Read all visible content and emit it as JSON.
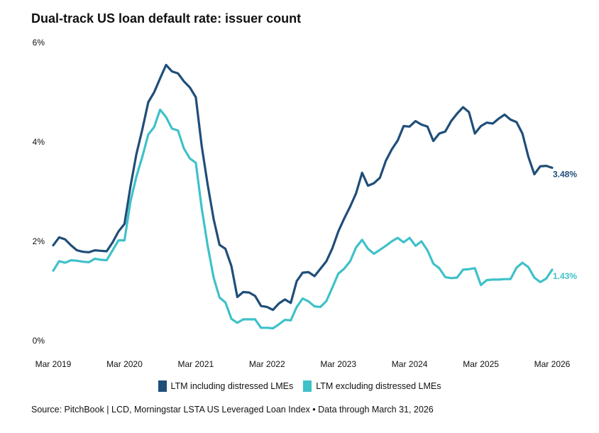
{
  "chart_data": {
    "type": "line",
    "title": "Dual-track US loan default rate: issuer count",
    "xlabel": "",
    "ylabel": "",
    "ylim": [
      0,
      6
    ],
    "y_ticks": [
      "0%",
      "2%",
      "4%",
      "6%"
    ],
    "y_tick_values": [
      0,
      2,
      4,
      6
    ],
    "x_range": [
      2019.167,
      2026.167
    ],
    "x_tick_labels": [
      "Mar 2019",
      "Mar 2020",
      "Mar 2021",
      "Mar 2022",
      "Mar 2023",
      "Mar 2024",
      "Mar 2025",
      "Mar 2026"
    ],
    "x_tick_values": [
      2019.167,
      2020.167,
      2021.167,
      2022.167,
      2023.167,
      2024.167,
      2025.167,
      2026.167
    ],
    "colors": {
      "including": "#1f4e79",
      "excluding": "#3fc1c9"
    },
    "series": [
      {
        "name": "LTM including distressed LMEs",
        "key": "including",
        "end_label": "3.48%",
        "x": [
          2019.167,
          2019.25,
          2019.333,
          2019.417,
          2019.5,
          2019.583,
          2019.667,
          2019.75,
          2019.833,
          2019.917,
          2020.0,
          2020.083,
          2020.167,
          2020.25,
          2020.333,
          2020.417,
          2020.5,
          2020.583,
          2020.667,
          2020.75,
          2020.833,
          2020.917,
          2021.0,
          2021.083,
          2021.167,
          2021.25,
          2021.333,
          2021.417,
          2021.5,
          2021.583,
          2021.667,
          2021.75,
          2021.833,
          2021.917,
          2022.0,
          2022.083,
          2022.167,
          2022.25,
          2022.333,
          2022.417,
          2022.5,
          2022.583,
          2022.667,
          2022.75,
          2022.833,
          2022.917,
          2023.0,
          2023.083,
          2023.167,
          2023.25,
          2023.333,
          2023.417,
          2023.5,
          2023.583,
          2023.667,
          2023.75,
          2023.833,
          2023.917,
          2024.0,
          2024.083,
          2024.167,
          2024.25,
          2024.333,
          2024.417,
          2024.5,
          2024.583,
          2024.667,
          2024.75,
          2024.833,
          2024.917,
          2025.0,
          2025.083,
          2025.167,
          2025.25,
          2025.333,
          2025.417,
          2025.5,
          2025.583,
          2025.667,
          2025.75,
          2025.833,
          2025.917,
          2026.0,
          2026.083,
          2026.167
        ],
        "values": [
          1.92,
          2.08,
          2.04,
          1.92,
          1.82,
          1.79,
          1.78,
          1.82,
          1.81,
          1.8,
          1.98,
          2.2,
          2.35,
          3.1,
          3.75,
          4.25,
          4.8,
          5.0,
          5.28,
          5.55,
          5.42,
          5.38,
          5.22,
          5.1,
          4.9,
          3.92,
          3.15,
          2.45,
          1.93,
          1.85,
          1.5,
          0.88,
          0.98,
          0.97,
          0.9,
          0.7,
          0.68,
          0.62,
          0.75,
          0.83,
          0.76,
          1.2,
          1.37,
          1.38,
          1.3,
          1.45,
          1.6,
          1.86,
          2.2,
          2.46,
          2.7,
          2.97,
          3.38,
          3.12,
          3.17,
          3.28,
          3.62,
          3.85,
          4.03,
          4.32,
          4.31,
          4.42,
          4.35,
          4.31,
          4.02,
          4.17,
          4.21,
          4.42,
          4.57,
          4.7,
          4.6,
          4.17,
          4.32,
          4.39,
          4.37,
          4.47,
          4.55,
          4.45,
          4.4,
          4.17,
          3.7,
          3.35,
          3.51,
          3.52,
          3.48
        ]
      },
      {
        "name": "LTM excluding distressed LMEs",
        "key": "excluding",
        "end_label": "1.43%",
        "x": [
          2019.167,
          2019.25,
          2019.333,
          2019.417,
          2019.5,
          2019.583,
          2019.667,
          2019.75,
          2019.833,
          2019.917,
          2020.0,
          2020.083,
          2020.167,
          2020.25,
          2020.333,
          2020.417,
          2020.5,
          2020.583,
          2020.667,
          2020.75,
          2020.833,
          2020.917,
          2021.0,
          2021.083,
          2021.167,
          2021.25,
          2021.333,
          2021.417,
          2021.5,
          2021.583,
          2021.667,
          2021.75,
          2021.833,
          2021.917,
          2022.0,
          2022.083,
          2022.167,
          2022.25,
          2022.333,
          2022.417,
          2022.5,
          2022.583,
          2022.667,
          2022.75,
          2022.833,
          2022.917,
          2023.0,
          2023.083,
          2023.167,
          2023.25,
          2023.333,
          2023.417,
          2023.5,
          2023.583,
          2023.667,
          2023.75,
          2023.833,
          2023.917,
          2024.0,
          2024.083,
          2024.167,
          2024.25,
          2024.333,
          2024.417,
          2024.5,
          2024.583,
          2024.667,
          2024.75,
          2024.833,
          2024.917,
          2025.0,
          2025.083,
          2025.167,
          2025.25,
          2025.333,
          2025.417,
          2025.5,
          2025.583,
          2025.667,
          2025.75,
          2025.833,
          2025.917,
          2026.0,
          2026.083,
          2026.167
        ],
        "values": [
          1.41,
          1.6,
          1.57,
          1.62,
          1.61,
          1.59,
          1.58,
          1.65,
          1.63,
          1.62,
          1.82,
          2.02,
          2.02,
          2.8,
          3.3,
          3.7,
          4.15,
          4.3,
          4.65,
          4.5,
          4.27,
          4.23,
          3.87,
          3.67,
          3.58,
          2.67,
          1.92,
          1.27,
          0.87,
          0.77,
          0.44,
          0.36,
          0.43,
          0.43,
          0.43,
          0.26,
          0.26,
          0.25,
          0.33,
          0.42,
          0.41,
          0.68,
          0.85,
          0.79,
          0.69,
          0.68,
          0.8,
          1.07,
          1.35,
          1.45,
          1.6,
          1.88,
          2.03,
          1.85,
          1.75,
          1.83,
          1.91,
          2.0,
          2.07,
          1.98,
          2.07,
          1.91,
          2.0,
          1.82,
          1.55,
          1.46,
          1.28,
          1.26,
          1.27,
          1.43,
          1.44,
          1.46,
          1.12,
          1.22,
          1.23,
          1.23,
          1.24,
          1.24,
          1.47,
          1.57,
          1.48,
          1.27,
          1.18,
          1.25,
          1.43
        ]
      }
    ]
  },
  "legend": {
    "including_label": "LTM including distressed LMEs",
    "excluding_label": "LTM excluding distressed LMEs"
  },
  "source": "Source: PitchBook | LCD, Morningstar LSTA US Leveraged Loan Index • Data through March 31, 2026"
}
